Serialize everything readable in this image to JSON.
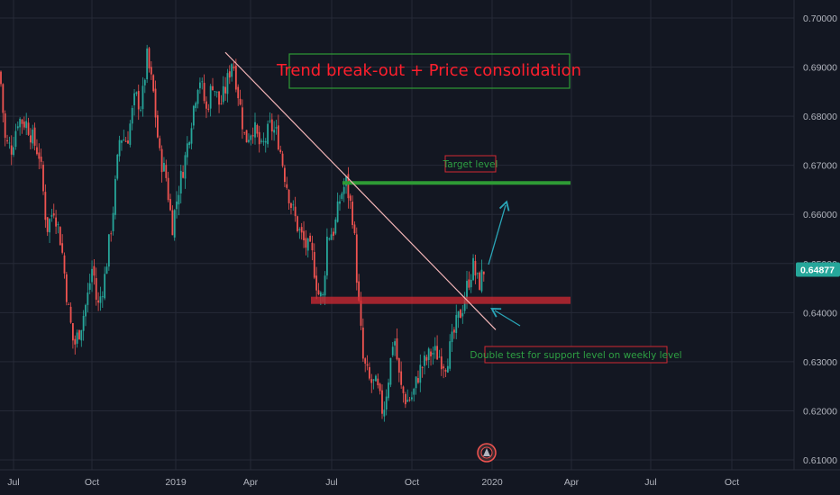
{
  "colors": {
    "background": "#131722",
    "grid": "#262a37",
    "candle_up": "#26a69a",
    "candle_down": "#ef5350",
    "trendline": "#f4b6b8",
    "target_line": "#2e9b35",
    "support_zone": "#d12a33",
    "arrow": "#2aa6b8",
    "price_tag": "#26a69a",
    "title_border": "#2e9b35",
    "title_text": "#ff1f2d"
  },
  "annotations": {
    "title": "Trend break-out + Price consolidation",
    "target": "Target level",
    "support": "Double test for support level on weekly level"
  },
  "price_tag": "0.64877",
  "icons": [
    "earnings-icon"
  ],
  "chart_data": {
    "type": "candlestick",
    "x_tick_labels": [
      "Jul",
      "Oct",
      "2019",
      "Apr",
      "Jul",
      "Oct",
      "2020",
      "Apr",
      "Jul",
      "Oct"
    ],
    "y_tick_labels": [
      "0.70000",
      "0.69000",
      "0.68000",
      "0.67000",
      "0.66000",
      "0.65000",
      "0.64000",
      "0.63000",
      "0.62000",
      "0.61000"
    ],
    "ylim": [
      0.6092,
      0.7023
    ],
    "grid": true,
    "last_price": 0.64877,
    "levels": {
      "target": 0.6664,
      "support": 0.6425
    },
    "trendline": {
      "from": 0.693,
      "to": 0.6365
    },
    "path": [
      {
        "x": 0,
        "y": 0.689
      },
      {
        "x": 6,
        "y": 0.6745
      },
      {
        "x": 13,
        "y": 0.6735
      },
      {
        "x": 20,
        "y": 0.6795
      },
      {
        "x": 30,
        "y": 0.6785
      },
      {
        "x": 38,
        "y": 0.6745
      },
      {
        "x": 44,
        "y": 0.672
      },
      {
        "x": 52,
        "y": 0.657
      },
      {
        "x": 60,
        "y": 0.6615
      },
      {
        "x": 68,
        "y": 0.654
      },
      {
        "x": 75,
        "y": 0.642
      },
      {
        "x": 82,
        "y": 0.633
      },
      {
        "x": 90,
        "y": 0.6375
      },
      {
        "x": 97,
        "y": 0.643
      },
      {
        "x": 103,
        "y": 0.65
      },
      {
        "x": 108,
        "y": 0.6405
      },
      {
        "x": 116,
        "y": 0.647
      },
      {
        "x": 125,
        "y": 0.66
      },
      {
        "x": 133,
        "y": 0.676
      },
      {
        "x": 141,
        "y": 0.675
      },
      {
        "x": 150,
        "y": 0.684
      },
      {
        "x": 157,
        "y": 0.682
      },
      {
        "x": 163,
        "y": 0.692
      },
      {
        "x": 170,
        "y": 0.685
      },
      {
        "x": 177,
        "y": 0.672
      },
      {
        "x": 184,
        "y": 0.668
      },
      {
        "x": 191,
        "y": 0.6575
      },
      {
        "x": 198,
        "y": 0.665
      },
      {
        "x": 206,
        "y": 0.672
      },
      {
        "x": 213,
        "y": 0.68
      },
      {
        "x": 221,
        "y": 0.6885
      },
      {
        "x": 229,
        "y": 0.681
      },
      {
        "x": 236,
        "y": 0.687
      },
      {
        "x": 244,
        "y": 0.682
      },
      {
        "x": 251,
        "y": 0.686
      },
      {
        "x": 258,
        "y": 0.692
      },
      {
        "x": 264,
        "y": 0.685
      },
      {
        "x": 272,
        "y": 0.675
      },
      {
        "x": 281,
        "y": 0.678
      },
      {
        "x": 290,
        "y": 0.673
      },
      {
        "x": 300,
        "y": 0.678
      },
      {
        "x": 308,
        "y": 0.676
      },
      {
        "x": 316,
        "y": 0.668
      },
      {
        "x": 323,
        "y": 0.662
      },
      {
        "x": 331,
        "y": 0.657
      },
      {
        "x": 338,
        "y": 0.654
      },
      {
        "x": 346,
        "y": 0.652
      },
      {
        "x": 353,
        "y": 0.644
      },
      {
        "x": 358,
        "y": 0.6425
      },
      {
        "x": 363,
        "y": 0.6555
      },
      {
        "x": 371,
        "y": 0.657
      },
      {
        "x": 378,
        "y": 0.664
      },
      {
        "x": 384,
        "y": 0.6665
      },
      {
        "x": 392,
        "y": 0.659
      },
      {
        "x": 397,
        "y": 0.644
      },
      {
        "x": 403,
        "y": 0.63
      },
      {
        "x": 410,
        "y": 0.626
      },
      {
        "x": 418,
        "y": 0.625
      },
      {
        "x": 425,
        "y": 0.6195
      },
      {
        "x": 432,
        "y": 0.628
      },
      {
        "x": 437,
        "y": 0.636
      },
      {
        "x": 444,
        "y": 0.625
      },
      {
        "x": 451,
        "y": 0.622
      },
      {
        "x": 458,
        "y": 0.623
      },
      {
        "x": 465,
        "y": 0.628
      },
      {
        "x": 472,
        "y": 0.63
      },
      {
        "x": 479,
        "y": 0.632
      },
      {
        "x": 486,
        "y": 0.6315
      },
      {
        "x": 494,
        "y": 0.6295
      },
      {
        "x": 500,
        "y": 0.633
      },
      {
        "x": 507,
        "y": 0.638
      },
      {
        "x": 513,
        "y": 0.641
      },
      {
        "x": 519,
        "y": 0.646
      },
      {
        "x": 525,
        "y": 0.6495
      },
      {
        "x": 531,
        "y": 0.6455
      },
      {
        "x": 537,
        "y": 0.64877
      }
    ]
  }
}
